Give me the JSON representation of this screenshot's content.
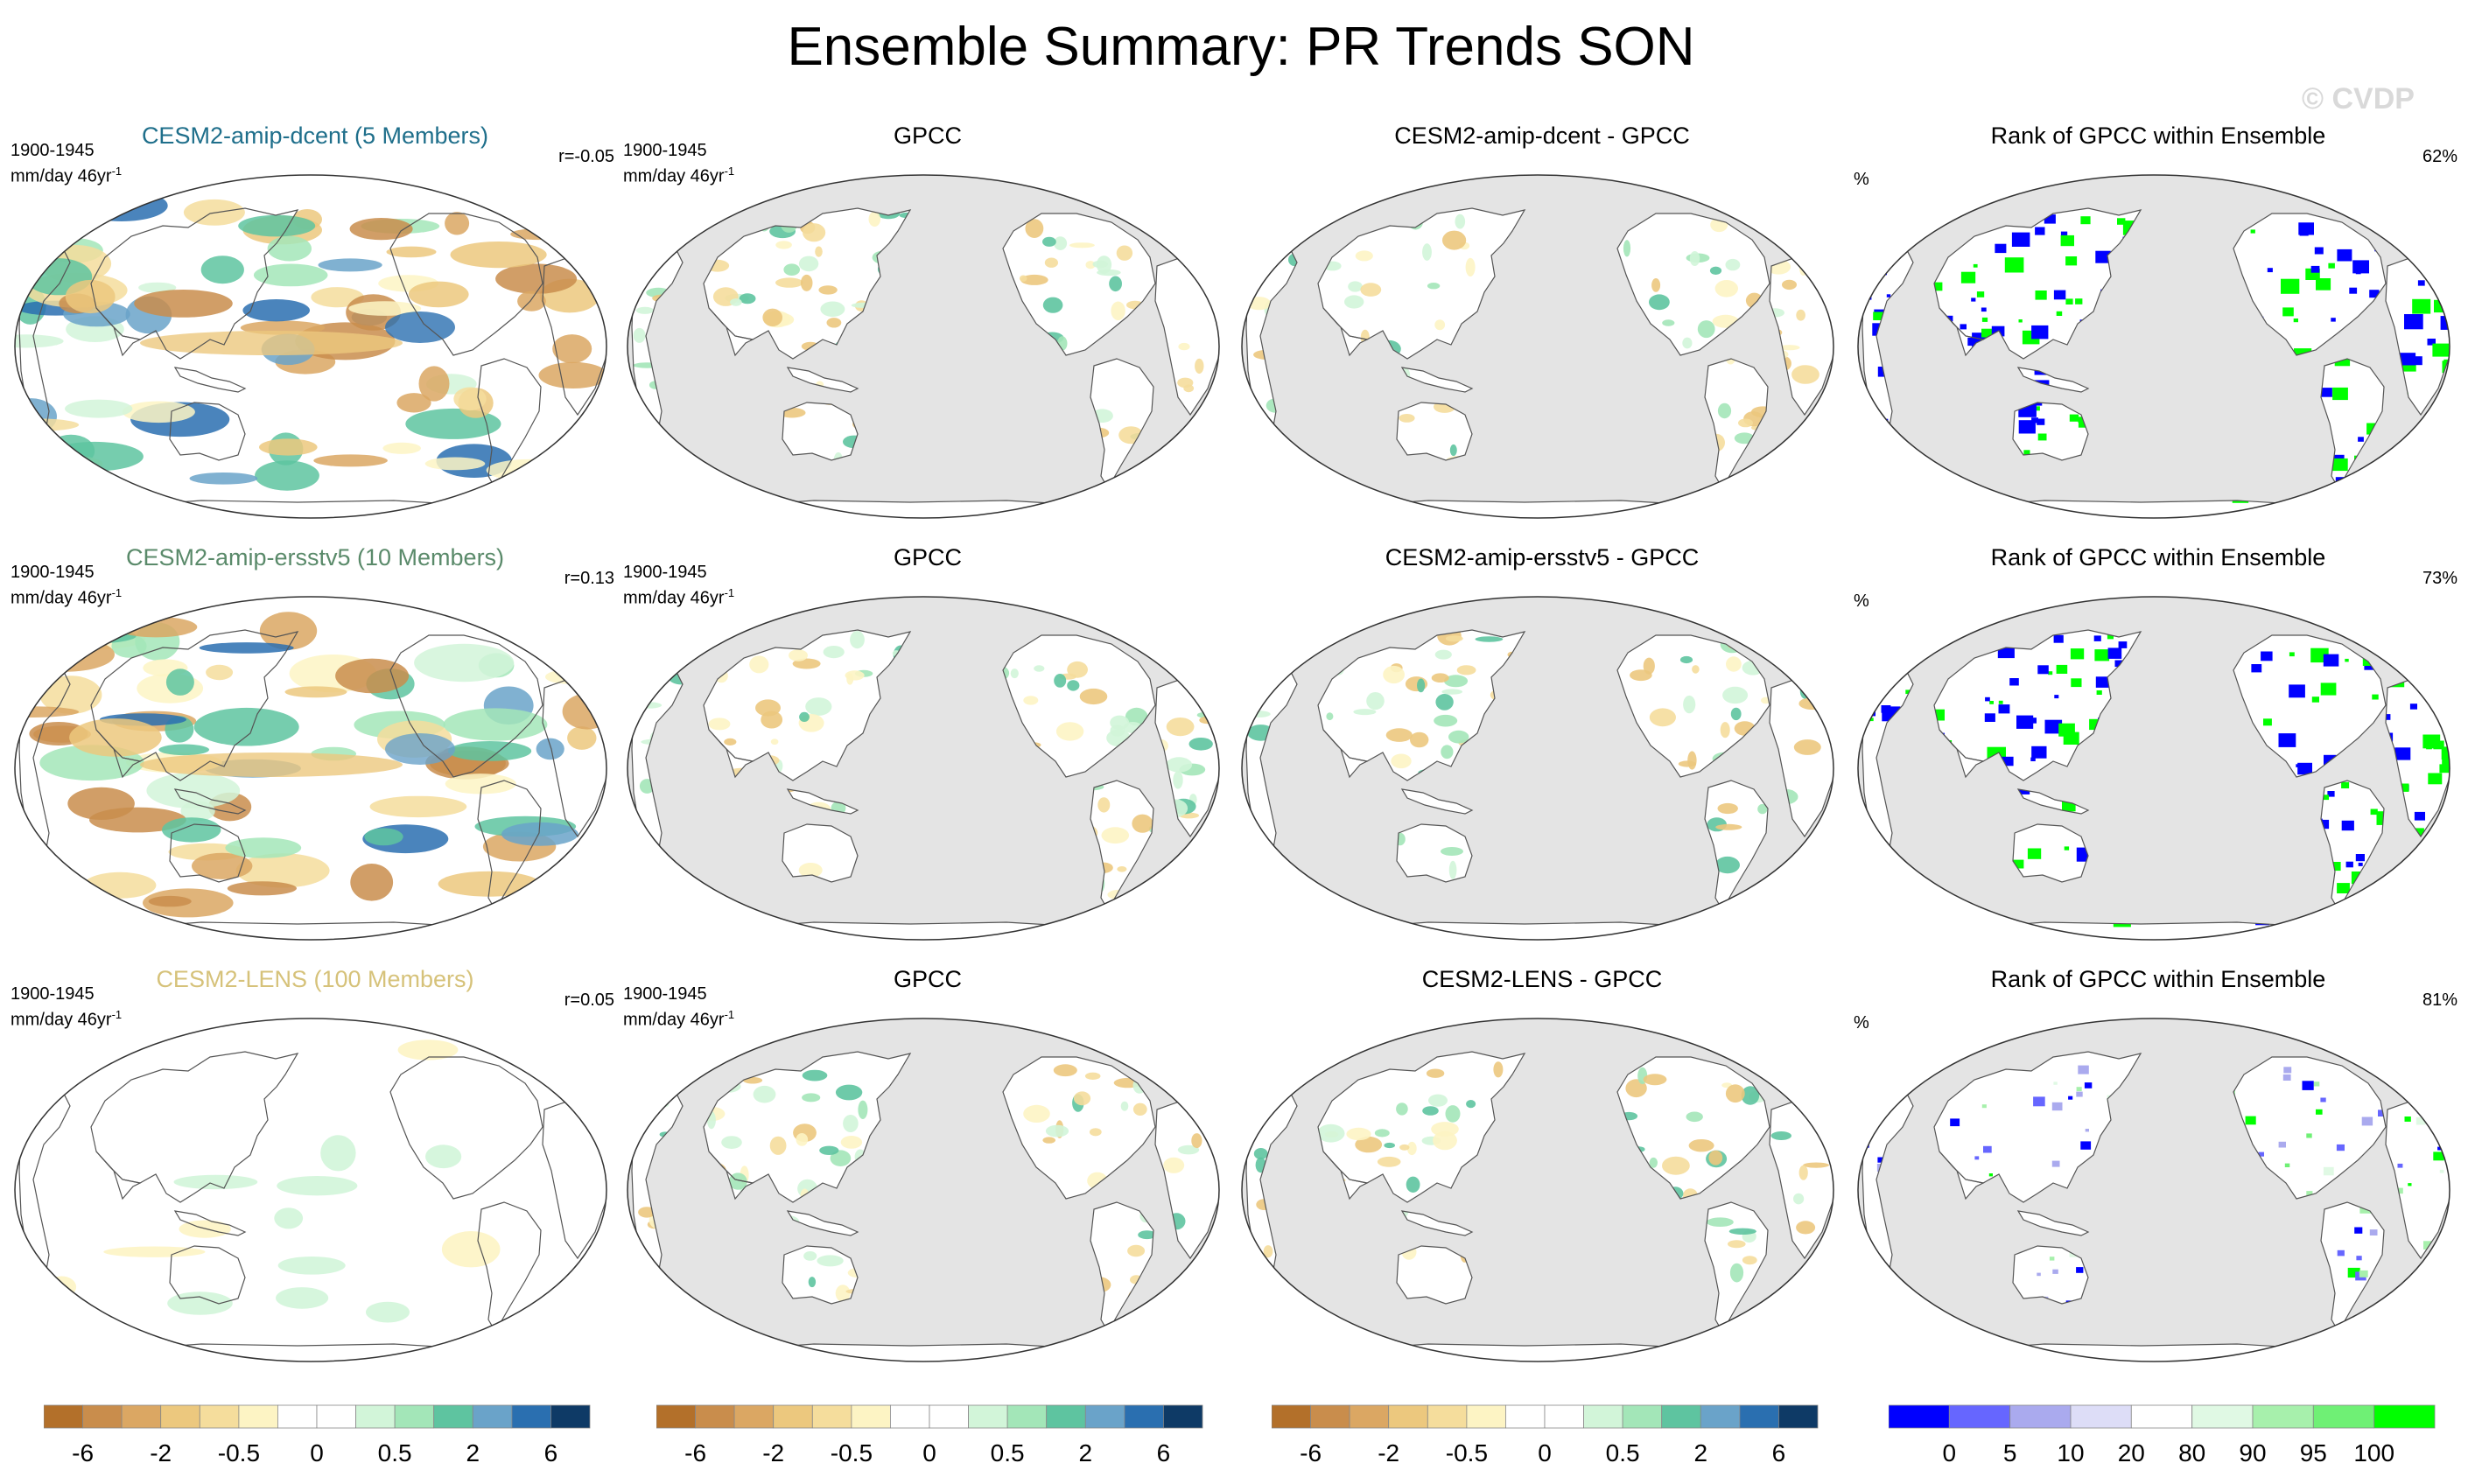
{
  "title": "Ensemble Summary: PR Trends SON",
  "watermark": "© CVDP",
  "colors": {
    "ocean_gray": "#e4e4e4",
    "blue_rank": "#0000ff",
    "green_rank": "#00ff00",
    "title_row1": "#1f6f8b",
    "title_row2": "#5a8a6a",
    "title_row3": "#d6c27a"
  },
  "rows": [
    {
      "model": {
        "title": "CESM2-amip-dcent (5 Members)",
        "color": "#1f6f8b",
        "period": "1900-1945",
        "units": "mm/day 46yr",
        "units_sup": "-1",
        "corr": "r=-0.05",
        "pattern": "strong"
      },
      "obs": {
        "title": "GPCC",
        "period": "1900-1945",
        "units": "mm/day 46yr",
        "units_sup": "-1"
      },
      "diff": {
        "title": "CESM2-amip-dcent - GPCC"
      },
      "rank": {
        "title": "Rank of GPCC within Ensemble",
        "percent_label": "%",
        "value": "62%"
      }
    },
    {
      "model": {
        "title": "CESM2-amip-ersstv5 (10 Members)",
        "color": "#5a8a6a",
        "period": "1900-1945",
        "units": "mm/day 46yr",
        "units_sup": "-1",
        "corr": "r=0.13",
        "pattern": "strong"
      },
      "obs": {
        "title": "GPCC",
        "period": "1900-1945",
        "units": "mm/day 46yr",
        "units_sup": "-1"
      },
      "diff": {
        "title": "CESM2-amip-ersstv5 - GPCC"
      },
      "rank": {
        "title": "Rank of GPCC within Ensemble",
        "percent_label": "%",
        "value": "73%"
      }
    },
    {
      "model": {
        "title": "CESM2-LENS (100 Members)",
        "color": "#d6c27a",
        "period": "1900-1945",
        "units": "mm/day 46yr",
        "units_sup": "-1",
        "corr": "r=0.05",
        "pattern": "weak"
      },
      "obs": {
        "title": "GPCC",
        "period": "1900-1945",
        "units": "mm/day 46yr",
        "units_sup": "-1"
      },
      "diff": {
        "title": "CESM2-LENS - GPCC"
      },
      "rank": {
        "title": "Rank of GPCC within Ensemble",
        "percent_label": "%",
        "value": "81%"
      }
    }
  ],
  "chart_data": {
    "type": "heatmap",
    "title": "Ensemble Summary: PR Trends SON",
    "variable": "precipitation trend",
    "season": "SON",
    "period": "1900-1945",
    "units": "mm/day 46yr-1",
    "trend_colorbar": {
      "levels": [
        "-6",
        "-2",
        "-0.5",
        "0",
        "0.5",
        "2",
        "6"
      ],
      "colors": [
        "#b3702a",
        "#c98d4c",
        "#dba763",
        "#ecc87e",
        "#f5dd9c",
        "#fdf4c4",
        "#ffffff",
        "#ffffff",
        "#d2f5d9",
        "#a3e6b8",
        "#5ec4a0",
        "#6aa3c9",
        "#2a6fb0",
        "#0e3a66"
      ]
    },
    "rank_colorbar": {
      "levels": [
        "0",
        "5",
        "10",
        "20",
        "80",
        "90",
        "95",
        "100"
      ],
      "colors": [
        "#0000ff",
        "#6666ff",
        "#aaaaee",
        "#ddddf7",
        "#ffffff",
        "#e0f9e4",
        "#a7f0ac",
        "#6ff075",
        "#00ff00"
      ]
    },
    "pattern_correlations": [
      {
        "model": "CESM2-amip-dcent",
        "members": 5,
        "r": -0.05,
        "rank_percent": 62
      },
      {
        "model": "CESM2-amip-ersstv5",
        "members": 10,
        "r": 0.13,
        "rank_percent": 73
      },
      {
        "model": "CESM2-LENS",
        "members": 100,
        "r": 0.05,
        "rank_percent": 81
      }
    ]
  }
}
